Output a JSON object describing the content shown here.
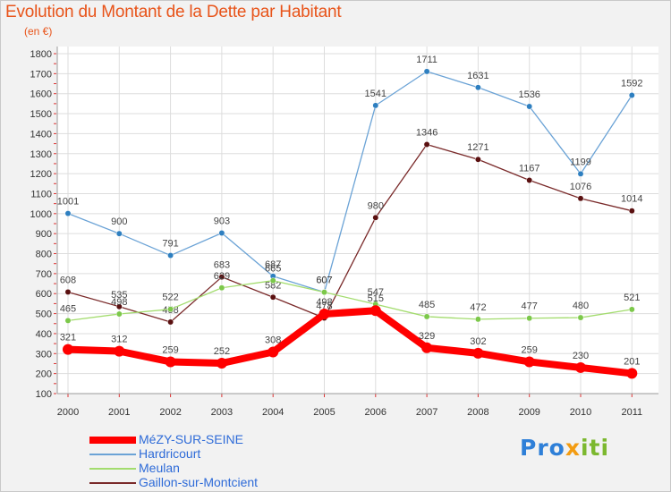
{
  "header": {
    "title": "Evolution du Montant de la Dette par Habitant",
    "unit": "(en €)"
  },
  "logo": {
    "text": "Proxiti",
    "part1": "Pro",
    "part2": "x",
    "part3": "iti"
  },
  "colors": {
    "background": "#f2f2f2",
    "title": "#e8541a",
    "axis_text": "#333333",
    "grid": "#dddddd",
    "legend_text": "#2e6bd8"
  },
  "chart_data": {
    "type": "line",
    "title": "Evolution du Montant de la Dette par Habitant",
    "ylabel": "(en €)",
    "xlabel": "",
    "ylim": [
      100,
      1800
    ],
    "yticks": [
      100,
      200,
      300,
      400,
      500,
      600,
      700,
      800,
      900,
      1000,
      1100,
      1200,
      1300,
      1400,
      1500,
      1600,
      1700,
      1800
    ],
    "categories": [
      "2000",
      "2001",
      "2002",
      "2003",
      "2004",
      "2005",
      "2006",
      "2007",
      "2008",
      "2009",
      "2010",
      "2011"
    ],
    "legend_position": "bottom-left",
    "series": [
      {
        "name": "Hardricourt",
        "color": "#6ba3d6",
        "marker": "#2e7fc0",
        "values": [
          1001,
          900,
          791,
          903,
          687,
          607,
          1541,
          1711,
          1631,
          1536,
          1199,
          1592
        ],
        "labels": [
          "1001",
          "900",
          "791",
          "903",
          "687",
          "607",
          "1541",
          "1711",
          "1631",
          "1536",
          "1199",
          "1592"
        ]
      },
      {
        "name": "Gaillon-sur-Montcient",
        "color": "#7a2a2a",
        "marker": "#5a1010",
        "values": [
          608,
          535,
          458,
          683,
          582,
          478,
          980,
          1346,
          1271,
          1167,
          1076,
          1014
        ],
        "labels": [
          "608",
          "535",
          "458",
          "683",
          "582",
          "478",
          "980",
          "1346",
          "1271",
          "1167",
          "1076",
          "1014"
        ]
      },
      {
        "name": "Meulan",
        "color": "#a3dc6e",
        "marker": "#7cc84a",
        "values": [
          465,
          498,
          522,
          629,
          665,
          607,
          547,
          485,
          472,
          477,
          480,
          521
        ],
        "labels": [
          "465",
          "498",
          "522",
          "629",
          "665",
          "607",
          "547",
          "485",
          "472",
          "477",
          "480",
          "521"
        ]
      },
      {
        "name": "MéZY-SUR-SEINE",
        "color": "#ff0000",
        "marker": "#ff0000",
        "values": [
          321,
          312,
          259,
          252,
          308,
          498,
          515,
          329,
          302,
          259,
          230,
          201
        ],
        "labels": [
          "321",
          "312",
          "259",
          "252",
          "308",
          "498",
          "515",
          "329",
          "302",
          "259",
          "230",
          "201"
        ]
      }
    ],
    "legend": [
      "MéZY-SUR-SEINE",
      "Hardricourt",
      "Meulan",
      "Gaillon-sur-Montcient"
    ]
  }
}
